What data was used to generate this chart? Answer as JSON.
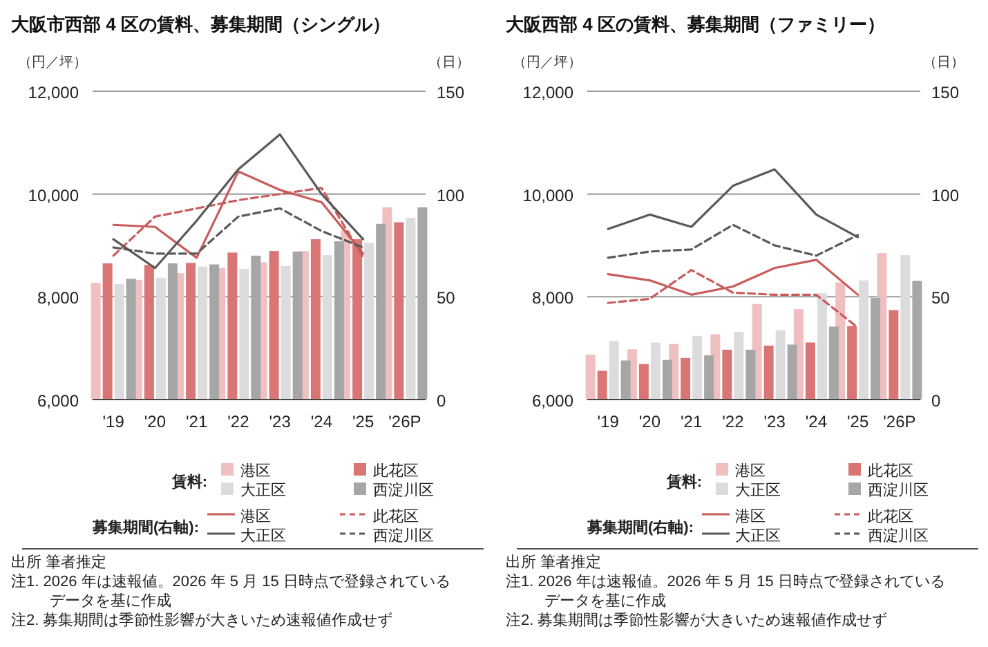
{
  "chart_data": [
    {
      "type": "bar",
      "title": "大阪市西部 4 区の賃料、募集期間（シングル）",
      "ylabel": "（円／坪）",
      "y2label": "（日）",
      "categories": [
        "'19",
        "'20",
        "'21",
        "'22",
        "'23",
        "'24",
        "'25",
        "'26P"
      ],
      "ylim": [
        6000,
        12000
      ],
      "yticks": [
        {
          "value": 6000,
          "label": "6,000"
        },
        {
          "value": 8000,
          "label": "8,000"
        },
        {
          "value": 10000,
          "label": "10,000"
        },
        {
          "value": 12000,
          "label": "12,000"
        }
      ],
      "y2lim": [
        0,
        150
      ],
      "y2ticks": [
        0,
        50,
        100,
        150
      ],
      "grid": "y",
      "legend": "bottom",
      "series": [
        {
          "name": "港区",
          "color": "#f0c0c0",
          "values": [
            8270,
            8330,
            8460,
            8560,
            8670,
            8890,
            9290,
            9740
          ]
        },
        {
          "name": "此花区",
          "color": "#d97575",
          "values": [
            8650,
            8620,
            8660,
            8860,
            8890,
            9120,
            9120,
            9450
          ]
        },
        {
          "name": "大正区",
          "color": "#dcdcdc",
          "values": [
            8250,
            8370,
            8590,
            8540,
            8600,
            8810,
            9050,
            9540
          ]
        },
        {
          "name": "西淀川区",
          "color": "#a6a6a6",
          "values": [
            8350,
            8650,
            8630,
            8800,
            8880,
            9080,
            9420,
            9740
          ]
        },
        {
          "name": "港区",
          "type": "line",
          "axis": "y2",
          "line_style": "solid",
          "color": "#c95b5b",
          "values": [
            85,
            84,
            69,
            111,
            102,
            96,
            71,
            null
          ]
        },
        {
          "name": "此花区",
          "type": "line",
          "axis": "y2",
          "line_style": "dashed",
          "color": "#c95b5b",
          "values": [
            70,
            89,
            93,
            97,
            100,
            103,
            69,
            null
          ]
        },
        {
          "name": "大正区",
          "type": "line",
          "axis": "y2",
          "line_style": "solid",
          "color": "#595959",
          "values": [
            78,
            64,
            87,
            112,
            129,
            100,
            78,
            null
          ]
        },
        {
          "name": "西淀川区",
          "type": "line",
          "axis": "y2",
          "line_style": "dashed",
          "color": "#595959",
          "values": [
            74,
            71,
            71,
            89,
            93,
            82,
            74,
            null
          ]
        }
      ],
      "annotations": [
        "賃料:",
        "募集期間(右軸):",
        "出所 筆者推定",
        "注1. 2026 年は速報値。2026 年 5 月 15 日時点で登録されているデータを基に作成",
        "注2. 募集期間は季節性影響が大きいため速報値作成せず"
      ]
    },
    {
      "type": "bar",
      "title": "大阪西部 4 区の賃料、募集期間（ファミリー）",
      "ylabel": "（円／坪）",
      "y2label": "（日）",
      "categories": [
        "'19",
        "'20",
        "'21",
        "'22",
        "'23",
        "'24",
        "'25",
        "'26P"
      ],
      "ylim": [
        6000,
        12000
      ],
      "yticks": [
        {
          "value": 6000,
          "label": "6,000"
        },
        {
          "value": 8000,
          "label": "8,000"
        },
        {
          "value": 10000,
          "label": "10,000"
        },
        {
          "value": 12000,
          "label": "12,000"
        }
      ],
      "y2lim": [
        0,
        150
      ],
      "y2ticks": [
        0,
        50,
        100,
        150
      ],
      "grid": "y",
      "legend": "bottom",
      "series": [
        {
          "name": "港区",
          "color": "#f0c0c0",
          "values": [
            6870,
            6980,
            7080,
            7270,
            7860,
            7760,
            8280,
            8850
          ]
        },
        {
          "name": "此花区",
          "color": "#d97575",
          "values": [
            6560,
            6690,
            6810,
            6970,
            7050,
            7110,
            7430,
            7740
          ]
        },
        {
          "name": "大正区",
          "color": "#dcdcdc",
          "values": [
            7140,
            7110,
            7240,
            7320,
            7350,
            8070,
            8320,
            8810
          ]
        },
        {
          "name": "西淀川区",
          "color": "#a6a6a6",
          "values": [
            6760,
            6770,
            6860,
            6970,
            7070,
            7420,
            7980,
            8310
          ]
        },
        {
          "name": "港区",
          "type": "line",
          "axis": "y2",
          "line_style": "solid",
          "color": "#c95b5b",
          "values": [
            61,
            58,
            51,
            55,
            64,
            68,
            51,
            null
          ]
        },
        {
          "name": "此花区",
          "type": "line",
          "axis": "y2",
          "line_style": "dashed",
          "color": "#c95b5b",
          "values": [
            47,
            49,
            63,
            52,
            51,
            51,
            35,
            null
          ]
        },
        {
          "name": "大正区",
          "type": "line",
          "axis": "y2",
          "line_style": "solid",
          "color": "#595959",
          "values": [
            83,
            90,
            84,
            104,
            112,
            90,
            79,
            null
          ]
        },
        {
          "name": "西淀川区",
          "type": "line",
          "axis": "y2",
          "line_style": "dashed",
          "color": "#595959",
          "values": [
            69,
            72,
            73,
            85,
            75,
            70,
            80,
            null
          ]
        }
      ],
      "annotations": [
        "賃料:",
        "募集期間(右軸):",
        "出所 筆者推定",
        "注1. 2026 年は速報値。2026 年 5 月 15 日時点で登録されているデータを基に作成",
        "注2. 募集期間は季節性影響が大きいため速報値作成せず"
      ]
    }
  ]
}
